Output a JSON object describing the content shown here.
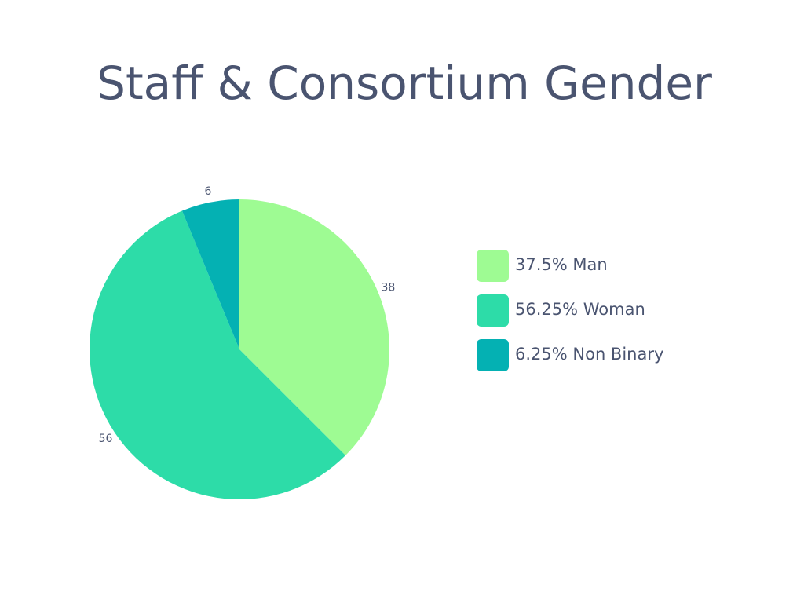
{
  "chart_data": {
    "type": "pie",
    "title": "Staff & Consortium Gender",
    "categories": [
      "37.5% Man",
      "56.25% Woman",
      "6.25% Non Binary"
    ],
    "values": [
      37.5,
      56.25,
      6.25
    ],
    "value_labels": [
      "38",
      "56",
      "6"
    ],
    "colors": [
      "#9efb93",
      "#2ddca8",
      "#04b1b3"
    ],
    "legend": "right"
  }
}
